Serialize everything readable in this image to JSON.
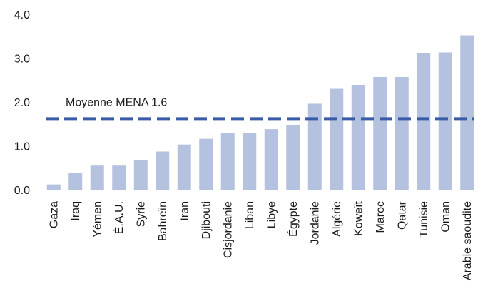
{
  "chart_data": {
    "type": "bar",
    "categories": [
      "Gaza",
      "Iraq",
      "Yémen",
      "É.A.U.",
      "Syrie",
      "Bahreïn",
      "Iran",
      "Djibouti",
      "Cisjordanie",
      "Liban",
      "Libye",
      "Égypte",
      "Jordanie",
      "Algérie",
      "Koweït",
      "Maroc",
      "Qatar",
      "Tunisie",
      "Oman",
      "Arabie saoudite"
    ],
    "values": [
      0.12,
      0.38,
      0.55,
      0.55,
      0.68,
      0.87,
      1.03,
      1.16,
      1.29,
      1.3,
      1.38,
      1.48,
      1.96,
      2.3,
      2.39,
      2.57,
      2.57,
      3.11,
      3.13,
      3.52
    ],
    "ylim": [
      0,
      4.0
    ],
    "yticks": [
      "0.0",
      "1.0",
      "2.0",
      "3.0",
      "4.0"
    ],
    "reference_line": {
      "label": "Moyenne MENA 1.6",
      "value": 1.62
    },
    "grid": false,
    "colors": {
      "bar": "#b4c2e0",
      "reference": "#3a5ba5",
      "axis": "#bfbfbf"
    }
  }
}
